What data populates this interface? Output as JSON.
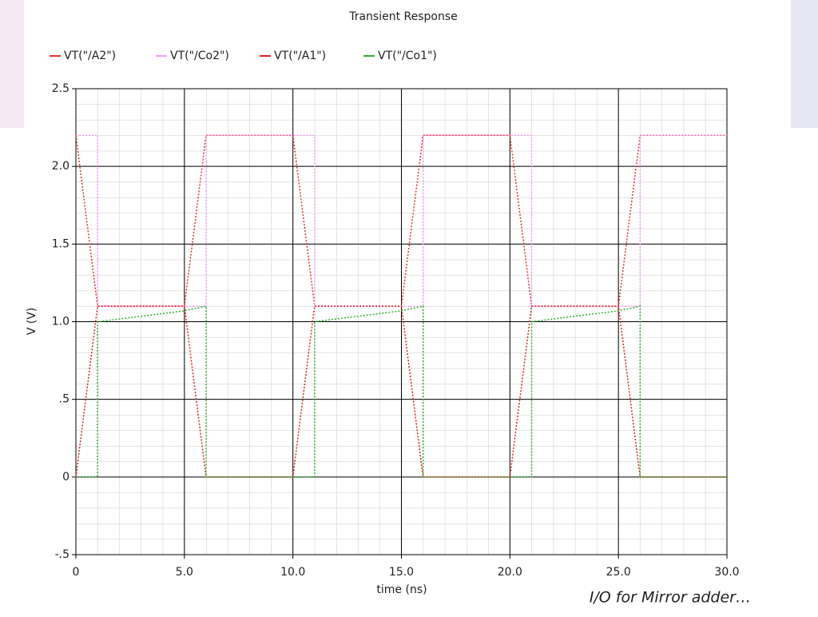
{
  "chart_data": {
    "type": "line",
    "title": "Transient Response",
    "x_label": "time (ns)",
    "y_label": "V (V)",
    "xlim": [
      0,
      30
    ],
    "ylim": [
      -0.5,
      2.5
    ],
    "xticks": [
      0,
      {
        "value": 5,
        "label": "5.0"
      },
      {
        "value": 10,
        "label": "10.0"
      },
      {
        "value": 15,
        "label": "15.0"
      },
      {
        "value": 20,
        "label": "20.0"
      },
      {
        "value": 25,
        "label": "25.0"
      },
      {
        "value": 30,
        "label": "30.0"
      }
    ],
    "yticks": [
      {
        "value": -0.5,
        "label": "-.5"
      },
      0,
      {
        "value": 0.5,
        "label": ".5"
      },
      {
        "value": 1,
        "label": "1.0"
      },
      1.5,
      {
        "value": 2,
        "label": "2.0"
      },
      2.5
    ],
    "grid": true,
    "legend": "top",
    "series": [
      {
        "name": "VT(\"/A2\")",
        "color": "#e83030",
        "x": [
          0,
          1,
          5,
          6,
          10,
          11,
          15,
          16,
          20,
          21,
          25,
          26,
          30
        ],
        "values": [
          2.2,
          1.1,
          1.1,
          2.2,
          2.2,
          1.1,
          1.1,
          2.2,
          2.2,
          1.1,
          1.1,
          2.2,
          2.2
        ]
      },
      {
        "name": "VT(\"/Co2\")",
        "color": "#f0a0f0",
        "x": [
          0,
          1,
          1,
          6,
          6,
          11,
          11,
          16,
          16,
          21,
          21,
          26,
          26,
          30
        ],
        "values": [
          2.2,
          2.2,
          1.1,
          1.1,
          2.2,
          2.2,
          1.1,
          1.1,
          2.2,
          2.2,
          1.1,
          1.1,
          2.2,
          2.2
        ]
      },
      {
        "name": "VT(\"/A1\")",
        "color": "#e02020",
        "x": [
          0,
          1,
          5,
          6,
          10,
          11,
          15,
          16,
          20,
          21,
          25,
          26,
          30
        ],
        "values": [
          0,
          1.1,
          1.1,
          0,
          0,
          1.1,
          1.1,
          0,
          0,
          1.1,
          1.1,
          0,
          0
        ]
      },
      {
        "name": "VT(\"/Co1\")",
        "color": "#30b030",
        "x": [
          0,
          1,
          1,
          5,
          6,
          6,
          11,
          11,
          15,
          16,
          16,
          21,
          21,
          25,
          26,
          26,
          30
        ],
        "values": [
          0,
          0,
          1.0,
          1.07,
          1.1,
          0,
          0,
          1.0,
          1.07,
          1.1,
          0,
          0,
          1.0,
          1.07,
          1.1,
          0,
          0
        ]
      }
    ]
  },
  "caption": "I/O for Mirror adder…"
}
